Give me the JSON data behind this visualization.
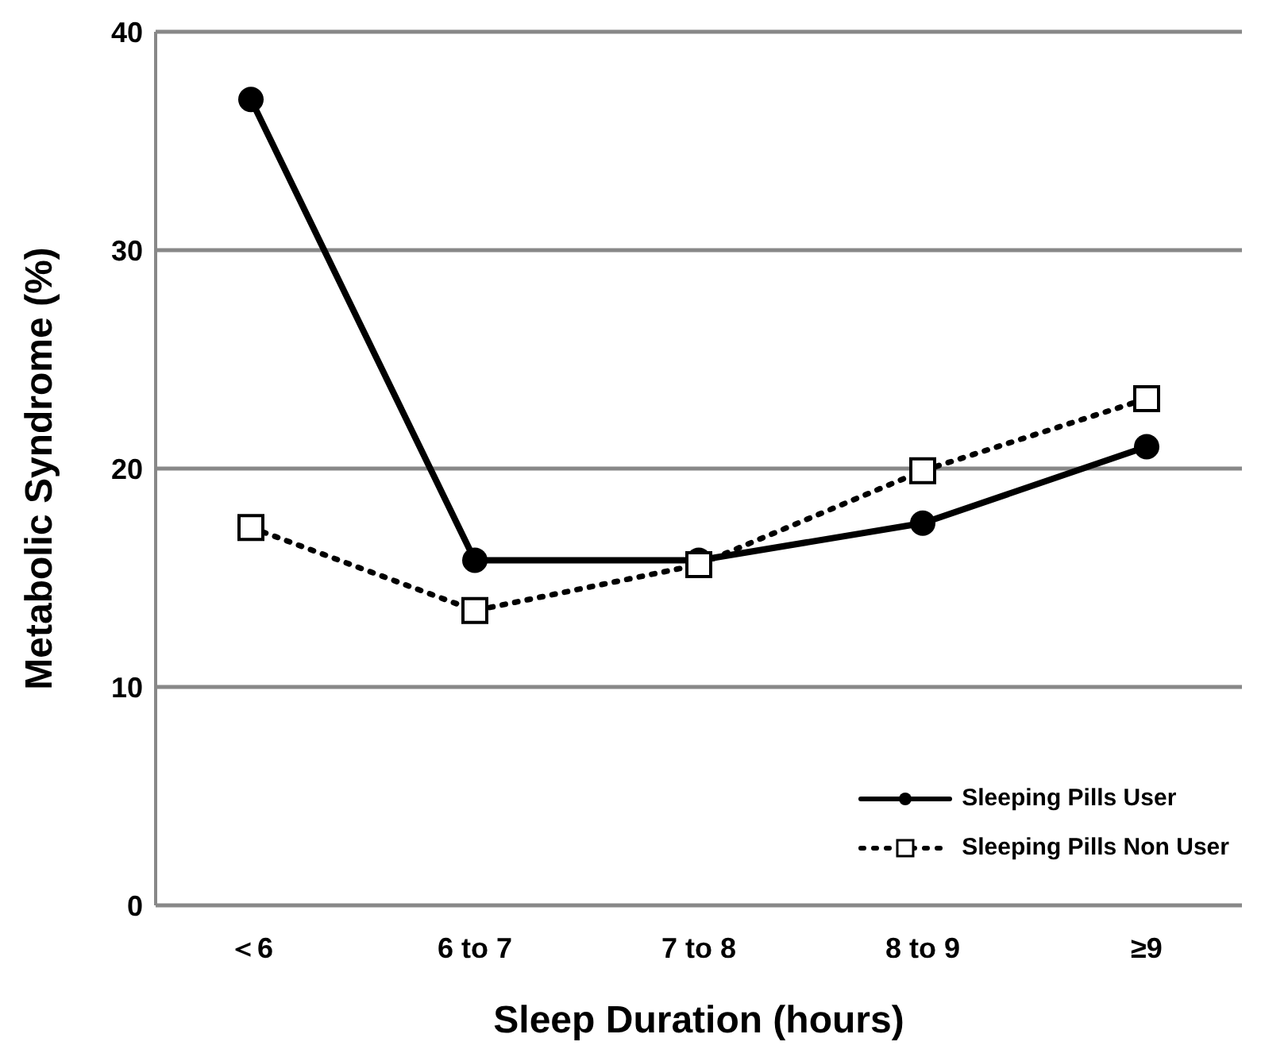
{
  "chart_data": {
    "type": "line",
    "xlabel": "Sleep Duration (hours)",
    "ylabel": "Metabolic Syndrome (%)",
    "categories": [
      "＜6",
      "6 to 7",
      "7 to 8",
      "8 to 9",
      "≥9"
    ],
    "series": [
      {
        "name": "Sleeping Pills User",
        "color": "#000000",
        "values": [
          36.9,
          15.8,
          15.8,
          17.5,
          21.0
        ],
        "marker": "circle",
        "line_style": "solid"
      },
      {
        "name": "Sleeping Pills Non User",
        "color": "#000000",
        "values": [
          17.3,
          13.5,
          15.6,
          19.9,
          23.2
        ],
        "marker": "square",
        "line_style": "dotted"
      }
    ],
    "ylim": [
      0,
      40
    ],
    "yticks": [
      0,
      10,
      20,
      30,
      40
    ],
    "grid": "y",
    "legend": "bottom right"
  }
}
